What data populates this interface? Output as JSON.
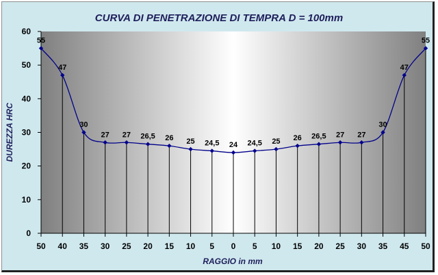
{
  "chart_data": {
    "type": "line",
    "title": "CURVA DI PENETRAZIONE DI TEMPRA D = 100mm",
    "xlabel": "RAGGIO in mm",
    "ylabel": "DUREZZA HRC",
    "ylim": [
      0,
      60
    ],
    "yticks": [
      "0",
      "10",
      "20",
      "30",
      "40",
      "50",
      "60"
    ],
    "categories": [
      "50",
      "40",
      "35",
      "30",
      "25",
      "20",
      "15",
      "10",
      "5",
      "0",
      "5",
      "10",
      "15",
      "20",
      "25",
      "30",
      "35",
      "45",
      "50"
    ],
    "series": [
      {
        "values": [
          55,
          47,
          30,
          27,
          27,
          26.5,
          26,
          25,
          24.5,
          24,
          24.5,
          25,
          26,
          26.5,
          27,
          27,
          30,
          47,
          55
        ],
        "labels": [
          "55",
          "47",
          "30",
          "27",
          "27",
          "26,5",
          "26",
          "25",
          "24,5",
          "24",
          "24,5",
          "25",
          "26",
          "26,5",
          "27",
          "27",
          "30",
          "47",
          "55"
        ],
        "color": "#00008b"
      }
    ],
    "background_gradient": [
      "#808080",
      "#ffffff",
      "#808080"
    ],
    "grid": false,
    "drop_lines": true
  }
}
